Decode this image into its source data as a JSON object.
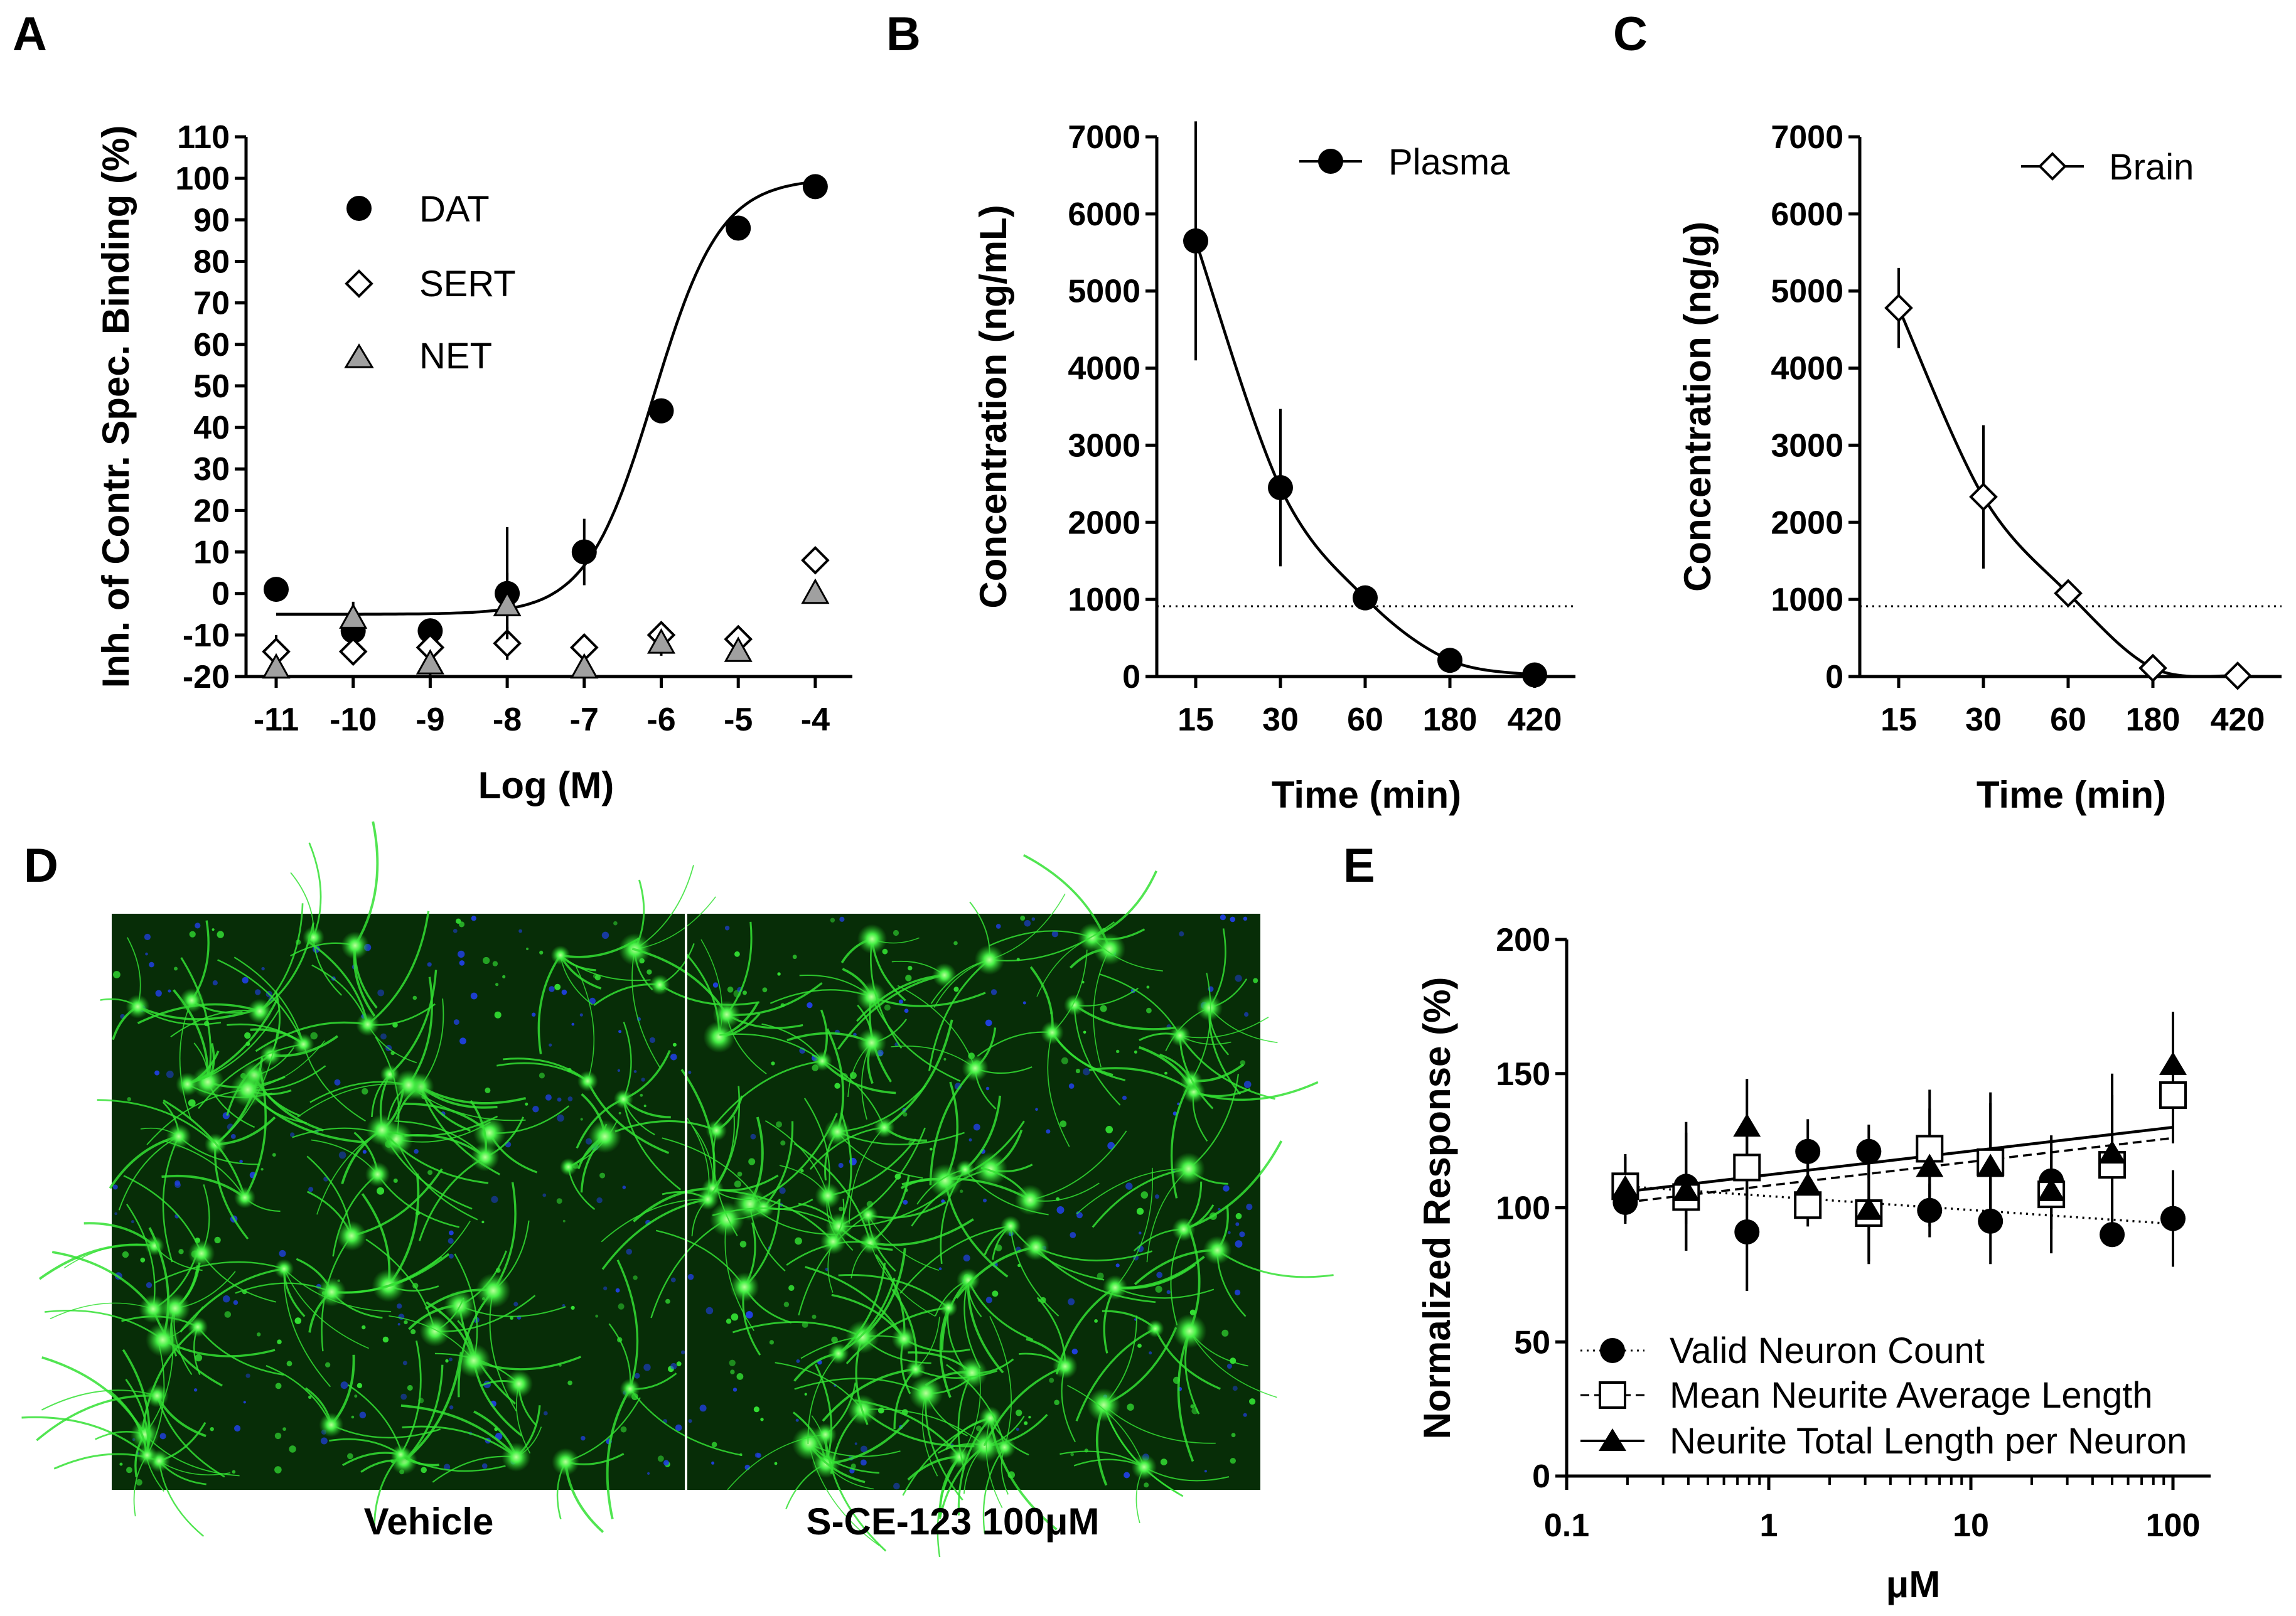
{
  "chart_data": [
    {
      "id": "A",
      "panel_label": "A",
      "type": "scatter",
      "xlabel": "Log (M)",
      "ylabel": "Inh. of Contr. Spec. Binding (%)",
      "x": [
        -11,
        -10,
        -9,
        -8,
        -7,
        -6,
        -5,
        -4
      ],
      "xticks": [
        "-11",
        "-10",
        "-9",
        "-8",
        "-7",
        "-6",
        "-5",
        "-4"
      ],
      "yticks": [
        "-20",
        "-10",
        "0",
        "10",
        "20",
        "30",
        "40",
        "50",
        "60",
        "70",
        "80",
        "90",
        "100",
        "110"
      ],
      "ylim": [
        -20,
        110
      ],
      "series": [
        {
          "name": "DAT",
          "marker": "filled-circle",
          "values": [
            1,
            -9,
            -9,
            0,
            10,
            44,
            88,
            98
          ],
          "err": [
            0,
            4,
            3,
            16,
            8,
            0,
            0,
            0
          ],
          "fit": "sigmoid"
        },
        {
          "name": "SERT",
          "marker": "open-diamond",
          "values": [
            -14,
            -14,
            -13,
            -12,
            -13,
            -10,
            -11,
            8
          ],
          "err": [
            4,
            2,
            2,
            4,
            3,
            2,
            3,
            0
          ]
        },
        {
          "name": "NET",
          "marker": "gray-triangle",
          "values": [
            -18,
            -6,
            -17,
            -3,
            -18,
            -12,
            -14,
            0
          ],
          "err": [
            2,
            4,
            3,
            8,
            2,
            3,
            2,
            0
          ]
        }
      ],
      "fit": {
        "bottom": -5,
        "top": 100,
        "logEC50": -6.1,
        "hill": 1.0
      }
    },
    {
      "id": "B",
      "panel_label": "B",
      "type": "line",
      "xlabel": "Time (min)",
      "ylabel": "Concentration (ng/mL)",
      "categories": [
        "15",
        "30",
        "60",
        "180",
        "420"
      ],
      "yticks": [
        "0",
        "1000",
        "2000",
        "3000",
        "4000",
        "5000",
        "6000",
        "7000"
      ],
      "ylim": [
        0,
        7000
      ],
      "reference_line": 900,
      "series": [
        {
          "name": "Plasma",
          "marker": "filled-circle",
          "values": [
            5650,
            2450,
            1020,
            210,
            20
          ],
          "err": [
            1550,
            1020,
            120,
            30,
            10
          ]
        }
      ]
    },
    {
      "id": "C",
      "panel_label": "C",
      "type": "line",
      "xlabel": "Time (min)",
      "ylabel": "Concentration (ng/g)",
      "categories": [
        "15",
        "30",
        "60",
        "180",
        "420"
      ],
      "yticks": [
        "0",
        "1000",
        "2000",
        "3000",
        "4000",
        "5000",
        "6000",
        "7000"
      ],
      "ylim": [
        0,
        7000
      ],
      "reference_line": 900,
      "series": [
        {
          "name": "Brain",
          "marker": "open-diamond",
          "values": [
            4780,
            2330,
            1080,
            110,
            10
          ],
          "err": [
            520,
            930,
            140,
            30,
            10
          ]
        }
      ]
    },
    {
      "id": "E",
      "panel_label": "E",
      "type": "scatter",
      "xscale": "log",
      "xlabel": "μM",
      "ylabel": "Normalized Response (%)",
      "xticks": [
        "0.1",
        "1",
        "10",
        "100"
      ],
      "yticks": [
        "0",
        "50",
        "100",
        "150",
        "200"
      ],
      "xlim": [
        0.1,
        200
      ],
      "ylim": [
        0,
        200
      ],
      "x": [
        0.195,
        0.39,
        0.78,
        1.56,
        3.125,
        6.25,
        12.5,
        25,
        50,
        100
      ],
      "series": [
        {
          "name": "Valid Neuron Count",
          "marker": "filled-circle",
          "line": "dotted",
          "values": [
            102,
            108,
            91,
            121,
            121,
            99,
            95,
            110,
            90,
            96
          ],
          "err": [
            8,
            24,
            22,
            12,
            10,
            10,
            16,
            12,
            0,
            18
          ],
          "trend": [
            108,
            94
          ]
        },
        {
          "name": "Mean Neurite Average Length",
          "marker": "open-square",
          "line": "dashed",
          "values": [
            108,
            104,
            115,
            101,
            98,
            122,
            117,
            105,
            116,
            142
          ],
          "err": [
            12,
            10,
            12,
            8,
            18,
            22,
            26,
            22,
            26,
            18
          ],
          "trend": [
            102,
            126
          ]
        },
        {
          "name": "Neurite Total Length per Neuron",
          "marker": "filled-triangle",
          "line": "solid",
          "values": [
            107,
            106,
            130,
            108,
            99,
            115,
            115,
            106,
            120,
            153
          ],
          "err": [
            12,
            22,
            18,
            10,
            20,
            22,
            24,
            14,
            30,
            20
          ],
          "trend": [
            106,
            130
          ]
        }
      ]
    }
  ],
  "panel_d": {
    "panel_label": "D",
    "captions": [
      "Vehicle",
      "S-CE-123 100μM"
    ]
  },
  "colors": {
    "neuron_green": "#33e033",
    "background_green": "#072d07",
    "nuclei_blue": "#2040e0",
    "net_gray": "#a0a0a0"
  }
}
